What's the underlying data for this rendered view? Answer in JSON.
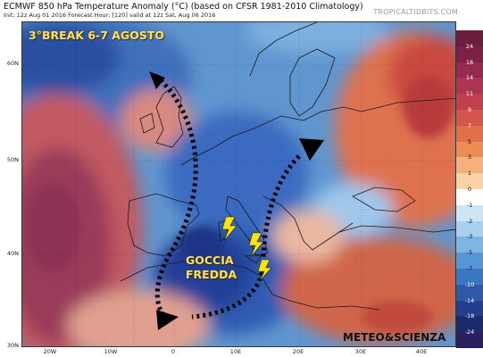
{
  "header": {
    "title": "ECMWF 850 hPa Temperature Anomaly (°C) (based on CFSR 1981-2010 Climatology)",
    "subtitle": "Init: 12z Aug 01 2016   Forecast Hour: [120]   valid at 12z Sat, Aug 06 2016",
    "site": "TROPICALTIDBITS.COM"
  },
  "map": {
    "region": "Europe / North Atlantic / Mediterranean",
    "lat_labels": [
      "60N",
      "50N",
      "40N",
      "30N"
    ],
    "lon_labels": [
      "20W",
      "10W",
      "0",
      "10E",
      "20E",
      "30E",
      "40E"
    ],
    "features": {
      "cold_anomaly": "Western Europe, Western Mediterranean",
      "warm_anomaly": "North Atlantic, Eastern Europe, North Africa"
    }
  },
  "annotations": {
    "headline": "3°BREAK 6-7 AGOSTO",
    "label_line1": "GOCCIA",
    "label_line2": "FREDDA",
    "brand": "METEO&SCIENZA"
  },
  "colorbar": {
    "ticks": [
      "24",
      "18",
      "14",
      "11",
      "9",
      "7",
      "5",
      "3",
      "1",
      "0",
      "-1",
      "-2",
      "-3",
      "-5",
      "-7",
      "-10",
      "-14",
      "-18",
      "-24"
    ],
    "colors": [
      "#6a1e3c",
      "#7e1f46",
      "#96294f",
      "#ad3452",
      "#c2404e",
      "#d4554a",
      "#e36f4a",
      "#ee8c56",
      "#f6b07a",
      "#fbd2a8",
      "#ffffff",
      "#cfe5f5",
      "#a9d0ee",
      "#7db5e3",
      "#5497d4",
      "#3b77c0",
      "#2f59a8",
      "#243e8c",
      "#1b2a6f",
      "#2b1e5e"
    ]
  }
}
